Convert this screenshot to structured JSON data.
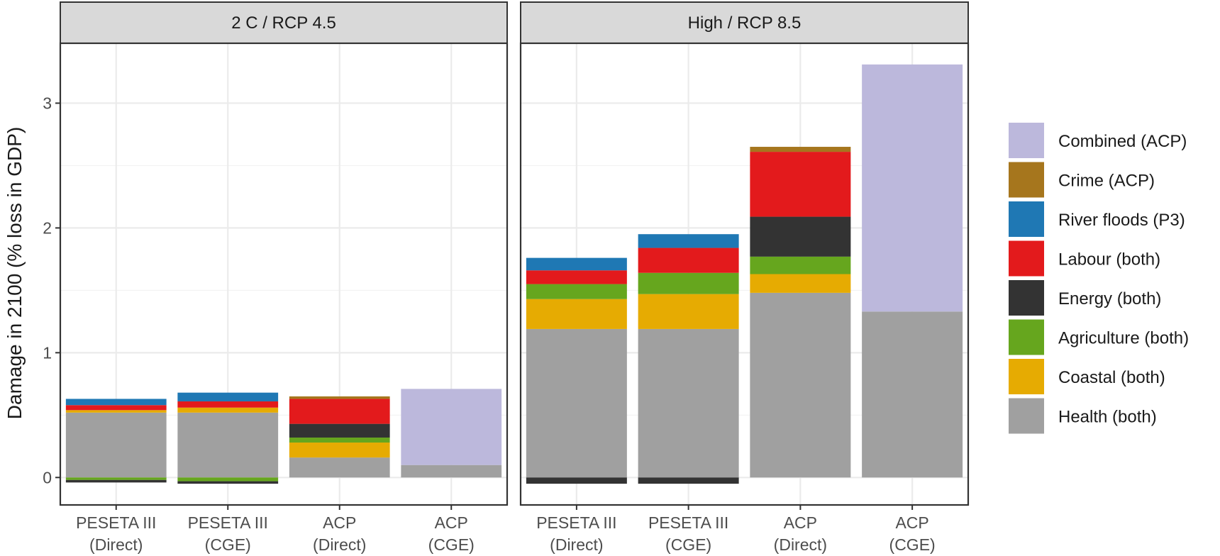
{
  "chart_data": {
    "type": "bar",
    "stacked": true,
    "ylabel": "Damage in 2100 (% loss in GDP)",
    "ylim": [
      -0.22,
      3.48
    ],
    "yticks": [
      0,
      1,
      2,
      3
    ],
    "grid": true,
    "legend_position": "right",
    "categories": [
      [
        "PESETA III",
        "(Direct)"
      ],
      [
        "PESETA III",
        "(CGE)"
      ],
      [
        "ACP",
        "(Direct)"
      ],
      [
        "ACP",
        "(CGE)"
      ]
    ],
    "legend": [
      {
        "name": "Combined (ACP)",
        "color": "#bcb8dc"
      },
      {
        "name": "Crime (ACP)",
        "color": "#a6761d"
      },
      {
        "name": "River floods (P3)",
        "color": "#1f78b4"
      },
      {
        "name": "Labour (both)",
        "color": "#e31a1c"
      },
      {
        "name": "Energy (both)",
        "color": "#333333"
      },
      {
        "name": "Agriculture (both)",
        "color": "#66a61e"
      },
      {
        "name": "Coastal (both)",
        "color": "#e6ab02"
      },
      {
        "name": "Health (both)",
        "color": "#a0a0a0"
      }
    ],
    "stack_order": [
      "Health (both)",
      "Coastal (both)",
      "Agriculture (both)",
      "Energy (both)",
      "Labour (both)",
      "River floods (P3)",
      "Crime (ACP)",
      "Combined (ACP)"
    ],
    "panels": [
      {
        "title": "2 C / RCP 4.5",
        "bars": [
          {
            "Health (both)": 0.52,
            "Coastal (both)": 0.02,
            "Agriculture (both)": -0.02,
            "Energy (both)": -0.02,
            "Labour (both)": 0.04,
            "River floods (P3)": 0.05
          },
          {
            "Health (both)": 0.52,
            "Coastal (both)": 0.04,
            "Agriculture (both)": -0.03,
            "Energy (both)": -0.02,
            "Labour (both)": 0.05,
            "River floods (P3)": 0.07
          },
          {
            "Health (both)": 0.16,
            "Coastal (both)": 0.12,
            "Agriculture (both)": 0.04,
            "Energy (both)": 0.11,
            "Labour (both)": 0.2,
            "Crime (ACP)": 0.02
          },
          {
            "Health (both)": 0.1,
            "Combined (ACP)": 0.61
          }
        ]
      },
      {
        "title": "High / RCP 8.5",
        "bars": [
          {
            "Health (both)": 1.19,
            "Coastal (both)": 0.24,
            "Agriculture (both)": 0.12,
            "Energy (both)": -0.05,
            "Labour (both)": 0.11,
            "River floods (P3)": 0.1
          },
          {
            "Health (both)": 1.19,
            "Coastal (both)": 0.28,
            "Agriculture (both)": 0.17,
            "Energy (both)": -0.05,
            "Labour (both)": 0.2,
            "River floods (P3)": 0.11
          },
          {
            "Health (both)": 1.48,
            "Coastal (both)": 0.15,
            "Agriculture (both)": 0.14,
            "Energy (both)": 0.32,
            "Labour (both)": 0.52,
            "Crime (ACP)": 0.04
          },
          {
            "Health (both)": 1.33,
            "Combined (ACP)": 1.98
          }
        ]
      }
    ]
  }
}
